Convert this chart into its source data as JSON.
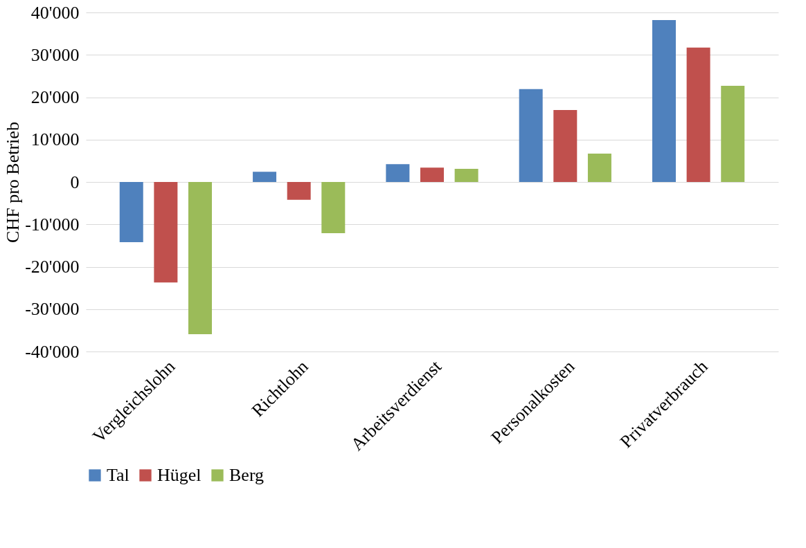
{
  "chart_data": {
    "type": "bar",
    "ylabel": "CHF pro Betrieb",
    "categories": [
      "Vergleichslohn",
      "Richtlohn",
      "Arbeitsverdienst",
      "Personalkosten",
      "Privatverbrauch"
    ],
    "series": [
      {
        "name": "Tal",
        "color": "#4f81bd",
        "values": [
          -14200,
          2400,
          4200,
          21900,
          38200
        ]
      },
      {
        "name": "Hügel",
        "color": "#c0504d",
        "values": [
          -23700,
          -4200,
          3400,
          17000,
          31700
        ]
      },
      {
        "name": "Berg",
        "color": "#9bbb59",
        "values": [
          -35900,
          -12100,
          3100,
          6700,
          22700
        ]
      }
    ],
    "ylim": [
      -40000,
      40000
    ],
    "yticks": [
      {
        "value": -40000,
        "label": "-40'000"
      },
      {
        "value": -30000,
        "label": "-30'000"
      },
      {
        "value": -20000,
        "label": "-20'000"
      },
      {
        "value": -10000,
        "label": "-10'000"
      },
      0,
      {
        "value": 10000,
        "label": "10'000"
      },
      {
        "value": 20000,
        "label": "20'000"
      },
      {
        "value": 30000,
        "label": "30'000"
      },
      {
        "value": 40000,
        "label": "40'000"
      }
    ],
    "grid": "y",
    "legend": "bottom"
  }
}
